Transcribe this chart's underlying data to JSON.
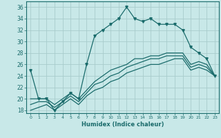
{
  "xlabel": "Humidex (Indice chaleur)",
  "bg_color": "#c8e8e8",
  "grid_color": "#a8cccc",
  "line_color": "#1a6b6b",
  "xlim": [
    -0.5,
    23.5
  ],
  "ylim": [
    17.5,
    37
  ],
  "xtick_vals": [
    0,
    1,
    2,
    3,
    4,
    5,
    6,
    7,
    8,
    9,
    10,
    11,
    12,
    13,
    14,
    15,
    16,
    17,
    18,
    19,
    20,
    21,
    22,
    23
  ],
  "ytick_vals": [
    18,
    20,
    22,
    24,
    26,
    28,
    30,
    32,
    34,
    36
  ],
  "line1_y": [
    25,
    20,
    20,
    18,
    19.5,
    21,
    20,
    26,
    31,
    32,
    33,
    34,
    36,
    34,
    33.5,
    34,
    33,
    33,
    33,
    32,
    29,
    28,
    27,
    24
  ],
  "line2_y": [
    20,
    20,
    20,
    19,
    20,
    21,
    20,
    21.5,
    23,
    24,
    25,
    25.5,
    26,
    27,
    27,
    27.5,
    27.5,
    28,
    28,
    28,
    26,
    26.5,
    26,
    24
  ],
  "line3_y": [
    19,
    19.5,
    19.5,
    18.5,
    19.5,
    20.5,
    19.5,
    21,
    22.5,
    23,
    24,
    24.5,
    25.5,
    26,
    26.5,
    27,
    27,
    27.5,
    27.5,
    27.5,
    25.5,
    26,
    25.5,
    24
  ],
  "line4_y": [
    18,
    18.5,
    19,
    18,
    19,
    20,
    19,
    20.5,
    21.5,
    22,
    23,
    23.5,
    24.5,
    25,
    25.5,
    26,
    26,
    26.5,
    27,
    27,
    25,
    25.5,
    25,
    24
  ]
}
